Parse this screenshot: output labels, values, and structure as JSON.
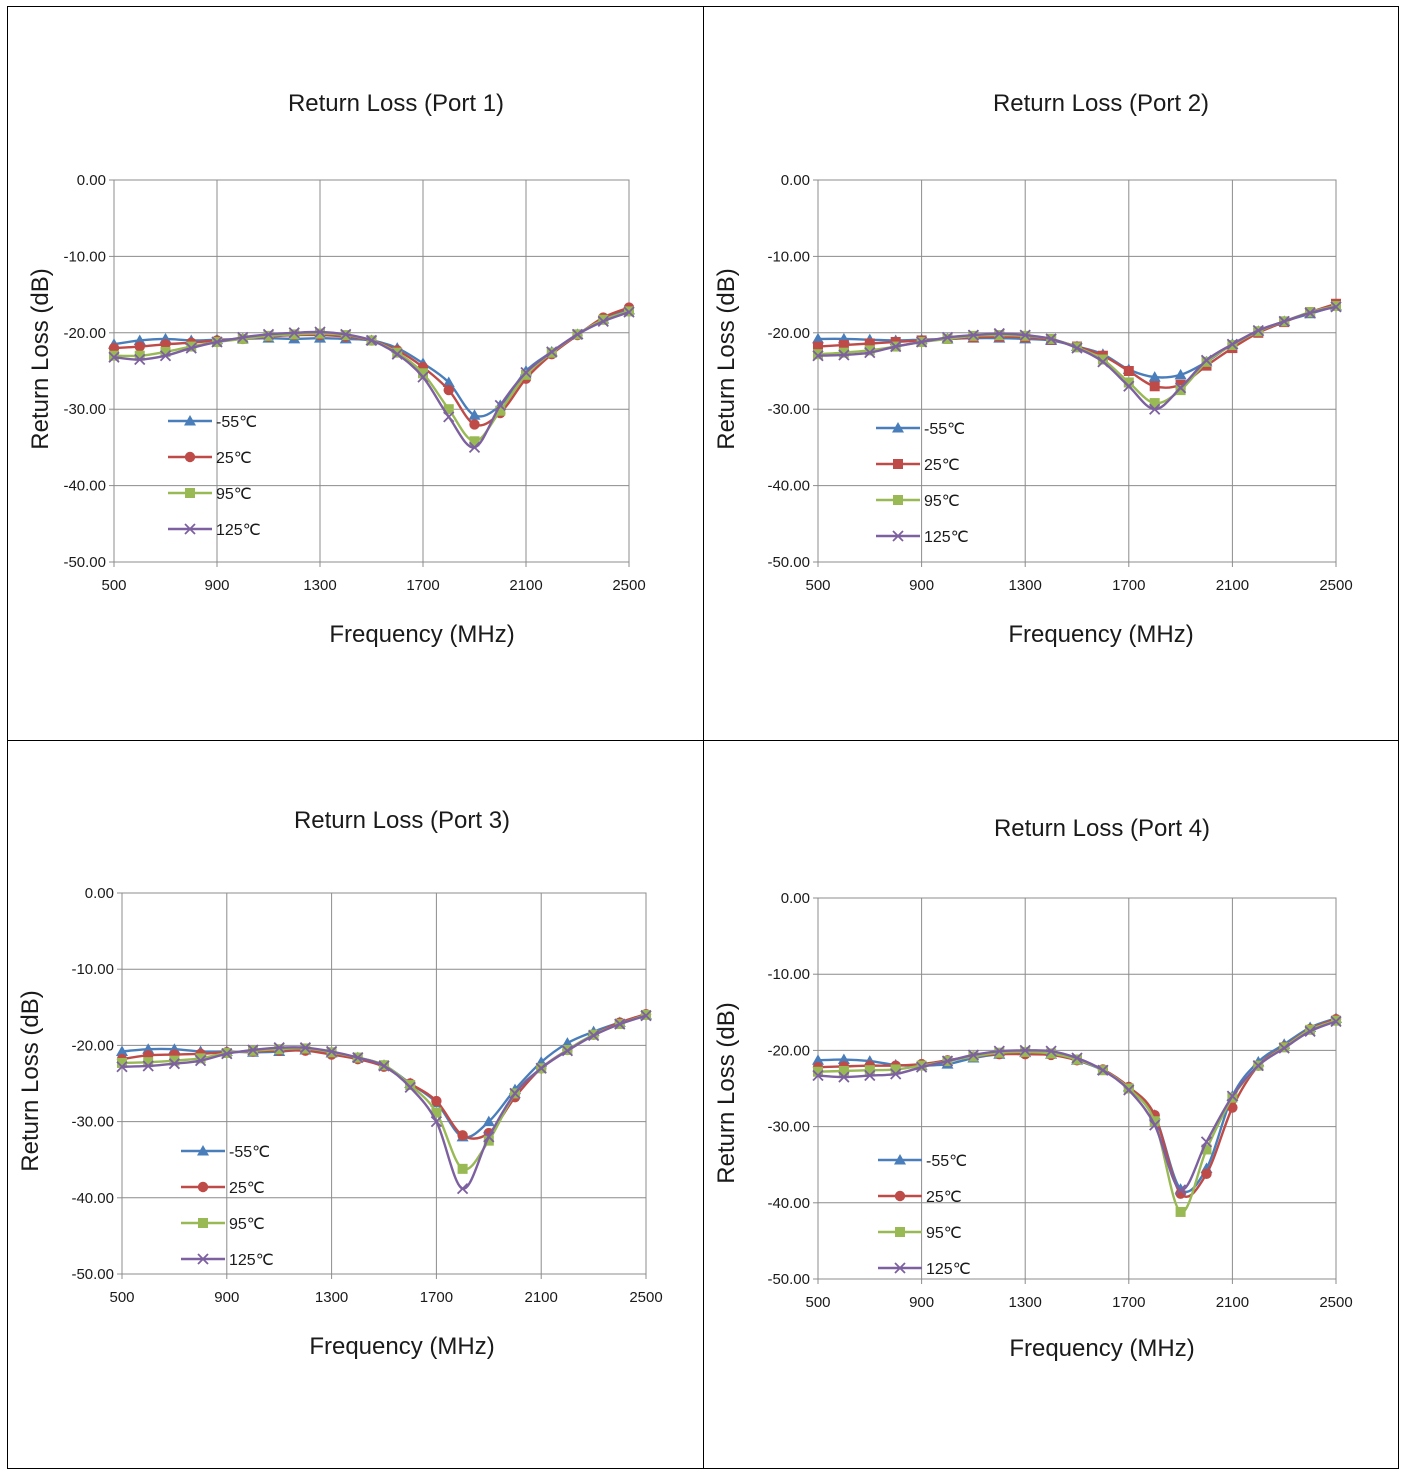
{
  "chart_data": [
    {
      "type": "line",
      "title": "Return Loss (Port 1)",
      "xlabel": "Frequency (MHz)",
      "ylabel": "Return Loss (dB)",
      "xlim": [
        500,
        2500
      ],
      "ylim": [
        -50,
        0
      ],
      "xticks": [
        "500",
        "900",
        "1300",
        "1700",
        "2100",
        "2500"
      ],
      "yticks": [
        "0.00",
        "-10.00",
        "-20.00",
        "-30.00",
        "-40.00",
        "-50.00"
      ],
      "grid": true,
      "legend": "lower-left inside",
      "x": [
        500,
        600,
        700,
        800,
        900,
        1000,
        1100,
        1200,
        1300,
        1400,
        1500,
        1600,
        1700,
        1800,
        1900,
        2000,
        2100,
        2200,
        2300,
        2400,
        2500
      ],
      "series": [
        {
          "name": "-55℃",
          "color": "#4a7ebb",
          "marker": "triangle",
          "values": [
            -21.5,
            -21.0,
            -20.8,
            -21.0,
            -20.9,
            -20.8,
            -20.7,
            -20.8,
            -20.7,
            -20.8,
            -21.0,
            -22.0,
            -24.0,
            -26.5,
            -30.8,
            -29.5,
            -25.0,
            -22.5,
            -20.2,
            -18.2,
            -17.0
          ]
        },
        {
          "name": "25℃",
          "color": "#be4b48",
          "marker": "circle",
          "values": [
            -22.0,
            -21.8,
            -21.5,
            -21.3,
            -21.0,
            -20.8,
            -20.5,
            -20.3,
            -20.3,
            -20.5,
            -21.0,
            -22.3,
            -24.5,
            -27.5,
            -32.0,
            -30.5,
            -26.0,
            -22.8,
            -20.3,
            -18.0,
            -16.7
          ]
        },
        {
          "name": "95℃",
          "color": "#98b954",
          "marker": "square",
          "values": [
            -23.0,
            -23.0,
            -22.5,
            -21.8,
            -21.2,
            -20.8,
            -20.4,
            -20.2,
            -20.1,
            -20.3,
            -21.0,
            -22.6,
            -25.3,
            -30.0,
            -34.2,
            -30.2,
            -25.5,
            -22.6,
            -20.2,
            -18.3,
            -17.2
          ]
        },
        {
          "name": "125℃",
          "color": "#7d60a0",
          "marker": "x",
          "values": [
            -23.2,
            -23.5,
            -23.0,
            -22.0,
            -21.2,
            -20.6,
            -20.2,
            -20.0,
            -19.9,
            -20.2,
            -21.0,
            -22.8,
            -25.8,
            -31.0,
            -35.0,
            -29.5,
            -25.2,
            -22.5,
            -20.2,
            -18.5,
            -17.3
          ]
        }
      ]
    },
    {
      "type": "line",
      "title": "Return Loss (Port 2)",
      "xlabel": "Frequency (MHz)",
      "ylabel": "Return Loss (dB)",
      "xlim": [
        500,
        2500
      ],
      "ylim": [
        -50,
        0
      ],
      "xticks": [
        "500",
        "900",
        "1300",
        "1700",
        "2100",
        "2500"
      ],
      "yticks": [
        "0.00",
        "-10.00",
        "-20.00",
        "-30.00",
        "-40.00",
        "-50.00"
      ],
      "grid": true,
      "legend": "lower-left inside",
      "x": [
        500,
        600,
        700,
        800,
        900,
        1000,
        1100,
        1200,
        1300,
        1400,
        1500,
        1600,
        1700,
        1800,
        1900,
        2000,
        2100,
        2200,
        2300,
        2400,
        2500
      ],
      "series": [
        {
          "name": "-55℃",
          "color": "#4a7ebb",
          "marker": "triangle",
          "values": [
            -20.8,
            -20.8,
            -20.9,
            -21.0,
            -20.9,
            -20.8,
            -20.7,
            -20.7,
            -20.8,
            -21.0,
            -21.8,
            -22.8,
            -24.8,
            -25.8,
            -25.5,
            -23.8,
            -21.5,
            -19.8,
            -18.5,
            -17.5,
            -16.5
          ]
        },
        {
          "name": "25℃",
          "color": "#be4b48",
          "marker": "square",
          "values": [
            -21.8,
            -21.6,
            -21.4,
            -21.2,
            -21.0,
            -20.8,
            -20.6,
            -20.5,
            -20.6,
            -20.9,
            -21.8,
            -23.0,
            -25.0,
            -27.0,
            -26.8,
            -24.3,
            -22.0,
            -20.0,
            -18.6,
            -17.3,
            -16.2
          ]
        },
        {
          "name": "95℃",
          "color": "#98b954",
          "marker": "square",
          "values": [
            -22.8,
            -22.6,
            -22.3,
            -21.8,
            -21.2,
            -20.8,
            -20.4,
            -20.3,
            -20.4,
            -20.8,
            -21.9,
            -23.5,
            -26.5,
            -29.2,
            -27.5,
            -23.8,
            -21.6,
            -19.8,
            -18.5,
            -17.3,
            -16.5
          ]
        },
        {
          "name": "125℃",
          "color": "#7d60a0",
          "marker": "x",
          "values": [
            -23.0,
            -22.9,
            -22.6,
            -21.8,
            -21.2,
            -20.6,
            -20.3,
            -20.1,
            -20.3,
            -20.8,
            -22.0,
            -23.8,
            -27.0,
            -30.0,
            -27.2,
            -23.6,
            -21.5,
            -19.7,
            -18.5,
            -17.4,
            -16.6
          ]
        }
      ]
    },
    {
      "type": "line",
      "title": "Return Loss (Port 3)",
      "xlabel": "Frequency (MHz)",
      "ylabel": "Return Loss (dB)",
      "xlim": [
        500,
        2500
      ],
      "ylim": [
        -50,
        0
      ],
      "xticks": [
        "500",
        "900",
        "1300",
        "1700",
        "2100",
        "2500"
      ],
      "yticks": [
        "0.00",
        "-10.00",
        "-20.00",
        "-30.00",
        "-40.00",
        "-50.00"
      ],
      "grid": true,
      "legend": "lower-left inside",
      "x": [
        500,
        600,
        700,
        800,
        900,
        1000,
        1100,
        1200,
        1300,
        1400,
        1500,
        1600,
        1700,
        1800,
        1900,
        2000,
        2100,
        2200,
        2300,
        2400,
        2500
      ],
      "series": [
        {
          "name": "-55℃",
          "color": "#4a7ebb",
          "marker": "triangle",
          "values": [
            -20.8,
            -20.5,
            -20.5,
            -20.8,
            -20.8,
            -20.9,
            -20.8,
            -20.6,
            -21.0,
            -21.6,
            -22.6,
            -25.0,
            -27.5,
            -32.0,
            -30.0,
            -25.8,
            -22.2,
            -19.7,
            -18.2,
            -17.0,
            -16.0
          ]
        },
        {
          "name": "25℃",
          "color": "#be4b48",
          "marker": "circle",
          "values": [
            -21.8,
            -21.3,
            -21.2,
            -21.1,
            -20.9,
            -20.8,
            -20.7,
            -20.7,
            -21.2,
            -21.8,
            -22.8,
            -25.0,
            -27.3,
            -31.8,
            -31.5,
            -26.8,
            -23.0,
            -20.6,
            -18.6,
            -17.0,
            -15.9
          ]
        },
        {
          "name": "95℃",
          "color": "#98b954",
          "marker": "square",
          "values": [
            -22.3,
            -22.2,
            -22.0,
            -21.7,
            -21.0,
            -20.7,
            -20.5,
            -20.4,
            -20.9,
            -21.6,
            -22.6,
            -25.2,
            -28.8,
            -36.2,
            -32.5,
            -26.3,
            -23.0,
            -20.6,
            -18.6,
            -17.2,
            -16.0
          ]
        },
        {
          "name": "125℃",
          "color": "#7d60a0",
          "marker": "x",
          "values": [
            -22.8,
            -22.7,
            -22.4,
            -22.0,
            -21.1,
            -20.6,
            -20.3,
            -20.3,
            -20.8,
            -21.6,
            -22.7,
            -25.5,
            -30.0,
            -38.8,
            -32.0,
            -26.3,
            -23.0,
            -20.7,
            -18.7,
            -17.2,
            -16.1
          ]
        }
      ]
    },
    {
      "type": "line",
      "title": "Return Loss (Port 4)",
      "xlabel": "Frequency (MHz)",
      "ylabel": "Return Loss (dB)",
      "xlim": [
        500,
        2500
      ],
      "ylim": [
        -50,
        0
      ],
      "xticks": [
        "500",
        "900",
        "1300",
        "1700",
        "2100",
        "2500"
      ],
      "yticks": [
        "0.00",
        "-10.00",
        "-20.00",
        "-30.00",
        "-40.00",
        "-50.00"
      ],
      "grid": true,
      "legend": "lower-left inside",
      "x": [
        500,
        600,
        700,
        800,
        900,
        1000,
        1100,
        1200,
        1300,
        1400,
        1500,
        1600,
        1700,
        1800,
        1900,
        2000,
        2100,
        2200,
        2300,
        2400,
        2500
      ],
      "series": [
        {
          "name": "-55℃",
          "color": "#4a7ebb",
          "marker": "triangle",
          "values": [
            -21.3,
            -21.2,
            -21.4,
            -21.9,
            -22.0,
            -21.8,
            -21.0,
            -20.5,
            -20.3,
            -20.5,
            -21.3,
            -22.6,
            -24.8,
            -28.5,
            -38.2,
            -35.5,
            -26.0,
            -21.5,
            -19.2,
            -17.0,
            -15.8
          ]
        },
        {
          "name": "25℃",
          "color": "#be4b48",
          "marker": "circle",
          "values": [
            -22.2,
            -22.1,
            -22.0,
            -22.0,
            -21.8,
            -21.3,
            -20.8,
            -20.5,
            -20.5,
            -20.6,
            -21.3,
            -22.5,
            -24.8,
            -28.5,
            -38.8,
            -36.2,
            -27.5,
            -22.0,
            -19.5,
            -17.2,
            -15.9
          ]
        },
        {
          "name": "95℃",
          "color": "#98b954",
          "marker": "square",
          "values": [
            -22.8,
            -22.7,
            -22.6,
            -22.5,
            -22.0,
            -21.4,
            -20.8,
            -20.3,
            -20.2,
            -20.4,
            -21.2,
            -22.6,
            -25.0,
            -29.3,
            -41.2,
            -33.0,
            -26.2,
            -22.0,
            -19.6,
            -17.3,
            -16.1
          ]
        },
        {
          "name": "125℃",
          "color": "#7d60a0",
          "marker": "x",
          "values": [
            -23.3,
            -23.5,
            -23.3,
            -23.1,
            -22.2,
            -21.4,
            -20.6,
            -20.1,
            -20.0,
            -20.1,
            -21.0,
            -22.6,
            -25.2,
            -29.8,
            -38.3,
            -32.0,
            -26.0,
            -22.0,
            -19.7,
            -17.5,
            -16.2
          ]
        }
      ]
    }
  ]
}
